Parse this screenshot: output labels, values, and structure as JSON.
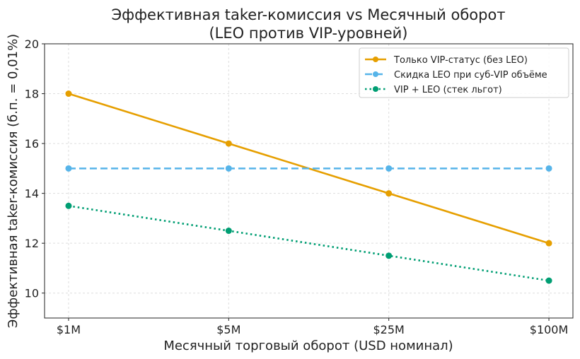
{
  "chart_data": {
    "type": "line",
    "title": "Эффективная taker-комиссия vs Месячный оборот\n(LEO против VIP-уровней)",
    "title_lines": [
      "Эффективная taker-комиссия vs Месячный оборот",
      "(LEO против VIP-уровней)"
    ],
    "xlabel": "Месячный торговый оборот (USD номинал)",
    "ylabel": "Эффективная taker-комиссия (б.п. = 0,01%)",
    "categories": [
      "$1M",
      "$5M",
      "$25M",
      "$100M"
    ],
    "ylim": [
      9,
      20
    ],
    "yticks": [
      10,
      12,
      14,
      16,
      18,
      20
    ],
    "grid": true,
    "legend_position": "top-right",
    "series": [
      {
        "name": "Только VIP-статус (без LEO)",
        "values": [
          18,
          16,
          14,
          12
        ],
        "color": "#E69F00",
        "style": "solid"
      },
      {
        "name": "Скидка LEO при суб-VIP объёме",
        "values": [
          15,
          15,
          15,
          15
        ],
        "color": "#56B4E9",
        "style": "dashed"
      },
      {
        "name": "VIP + LEO (стек льгот)",
        "values": [
          13.5,
          12.5,
          11.5,
          10.5
        ],
        "color": "#009E73",
        "style": "dotted"
      }
    ]
  }
}
